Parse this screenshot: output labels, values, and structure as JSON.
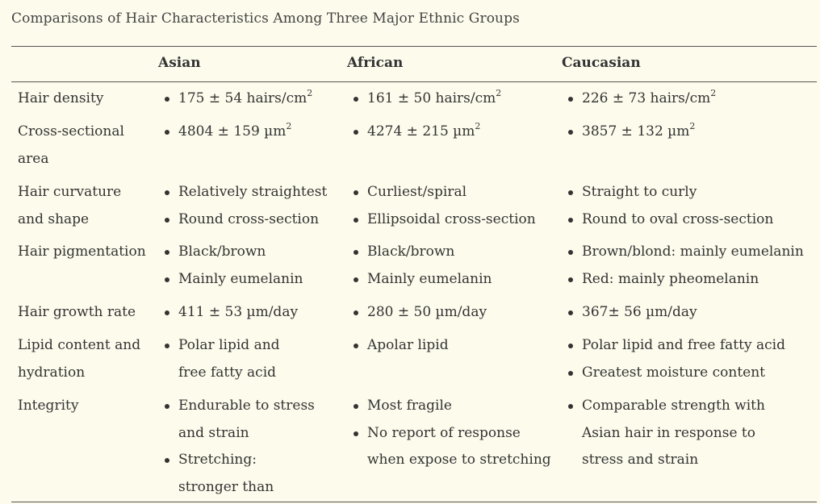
{
  "caption": "Comparisons of Hair Characteristics Among Three Major Ethnic Groups",
  "headers": {
    "label": "",
    "asian": "Asian",
    "african": "African",
    "caucasian": "Caucasian"
  },
  "rows": [
    {
      "label": "Hair density",
      "asian": [
        {
          "text": "175 ± 54 hairs/cm",
          "sup": "2"
        }
      ],
      "african": [
        {
          "text": "161 ± 50 hairs/cm",
          "sup": "2"
        }
      ],
      "caucasian": [
        {
          "text": "226 ± 73 hairs/cm",
          "sup": "2"
        }
      ]
    },
    {
      "label": "Cross-sectional area",
      "asian": [
        {
          "text": "4804 ± 159 µm",
          "sup": "2"
        }
      ],
      "african": [
        {
          "text": "4274 ± 215 µm",
          "sup": "2"
        }
      ],
      "caucasian": [
        {
          "text": "3857 ± 132 µm",
          "sup": "2"
        }
      ]
    },
    {
      "label": "Hair curvature and shape",
      "asian": [
        {
          "text": "Relatively straightest"
        },
        {
          "text": "Round cross-section"
        }
      ],
      "african": [
        {
          "text": "Curliest/spiral"
        },
        {
          "text": "Ellipsoidal cross-section"
        }
      ],
      "caucasian": [
        {
          "text": "Straight to curly"
        },
        {
          "text": "Round to oval cross-section"
        }
      ]
    },
    {
      "label": "Hair pigmentation",
      "asian": [
        {
          "text": "Black/brown"
        },
        {
          "text": "Mainly eumelanin"
        }
      ],
      "african": [
        {
          "text": "Black/brown"
        },
        {
          "text": "Mainly eumelanin"
        }
      ],
      "caucasian": [
        {
          "text": "Brown/blond: mainly eumelanin"
        },
        {
          "text": "Red: mainly pheomelanin"
        }
      ]
    },
    {
      "label": "Hair growth rate",
      "asian": [
        {
          "text": "411 ± 53 µm/day"
        }
      ],
      "african": [
        {
          "text": "280 ± 50 µm/day"
        }
      ],
      "caucasian": [
        {
          "text": "367± 56 µm/day"
        }
      ]
    },
    {
      "label": "Lipid content and hydration",
      "asian": [
        {
          "text": "Polar lipid and free fatty acid"
        }
      ],
      "african": [
        {
          "text": "Apolar lipid"
        }
      ],
      "caucasian": [
        {
          "text": "Polar lipid and free fatty acid"
        },
        {
          "text": "Greatest moisture content"
        }
      ]
    },
    {
      "label": "Integrity",
      "asian": [
        {
          "text": "Endurable to stress and strain"
        },
        {
          "text": "Stretching: stronger than Caucasian hair"
        }
      ],
      "african": [
        {
          "text": "Most fragile"
        },
        {
          "text": "No report of response when expose to stretching"
        }
      ],
      "caucasian": [
        {
          "text": "Comparable strength with Asian hair in response to stress and strain"
        }
      ]
    }
  ]
}
